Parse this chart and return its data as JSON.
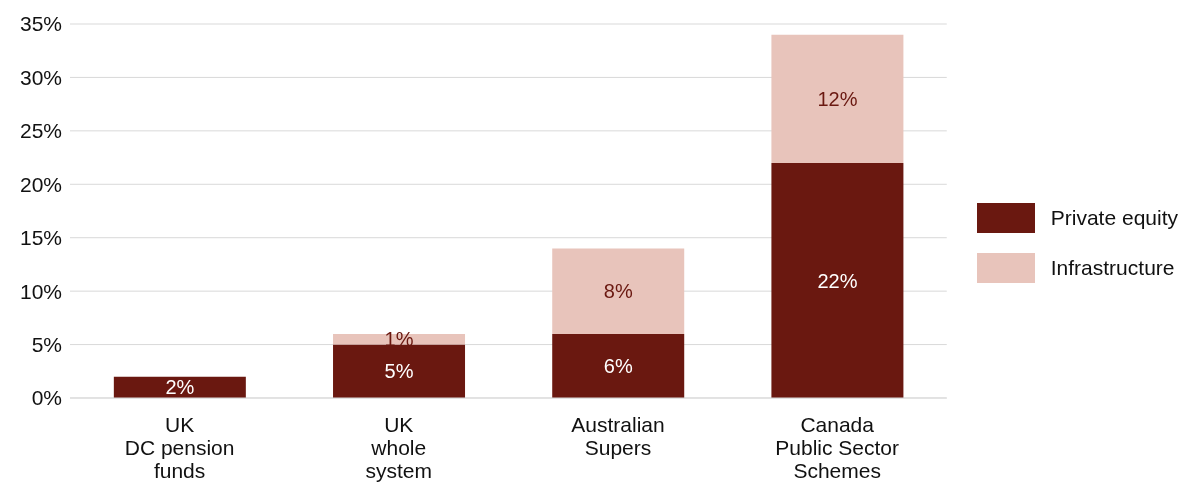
{
  "chart_data": {
    "type": "bar",
    "stacked": true,
    "categories": [
      "UK\nDC pension\nfunds",
      "UK\nwhole\nsystem",
      "Australian\nSupers",
      "Canada\nPublic Sector\nSchemes"
    ],
    "series": [
      {
        "name": "Private equity",
        "color": "#6a1810",
        "values": [
          2,
          5,
          6,
          22
        ],
        "value_labels": [
          "2%",
          "5%",
          "6%",
          "22%"
        ]
      },
      {
        "name": "Infrastructure",
        "color": "#e8c4bb",
        "values": [
          null,
          1,
          8,
          12
        ],
        "value_labels": [
          null,
          "1%",
          "8%",
          "12%"
        ]
      }
    ],
    "ylim": [
      0,
      35
    ],
    "yticks": [
      {
        "value": 0,
        "label": "0%"
      },
      {
        "value": 5,
        "label": "5%"
      },
      {
        "value": 10,
        "label": "10%"
      },
      {
        "value": 15,
        "label": "15%"
      },
      {
        "value": 20,
        "label": "20%"
      },
      {
        "value": 25,
        "label": "25%"
      },
      {
        "value": 30,
        "label": "30%"
      },
      {
        "value": 35,
        "label": "35%"
      }
    ],
    "grid": "y",
    "legend": "right"
  }
}
